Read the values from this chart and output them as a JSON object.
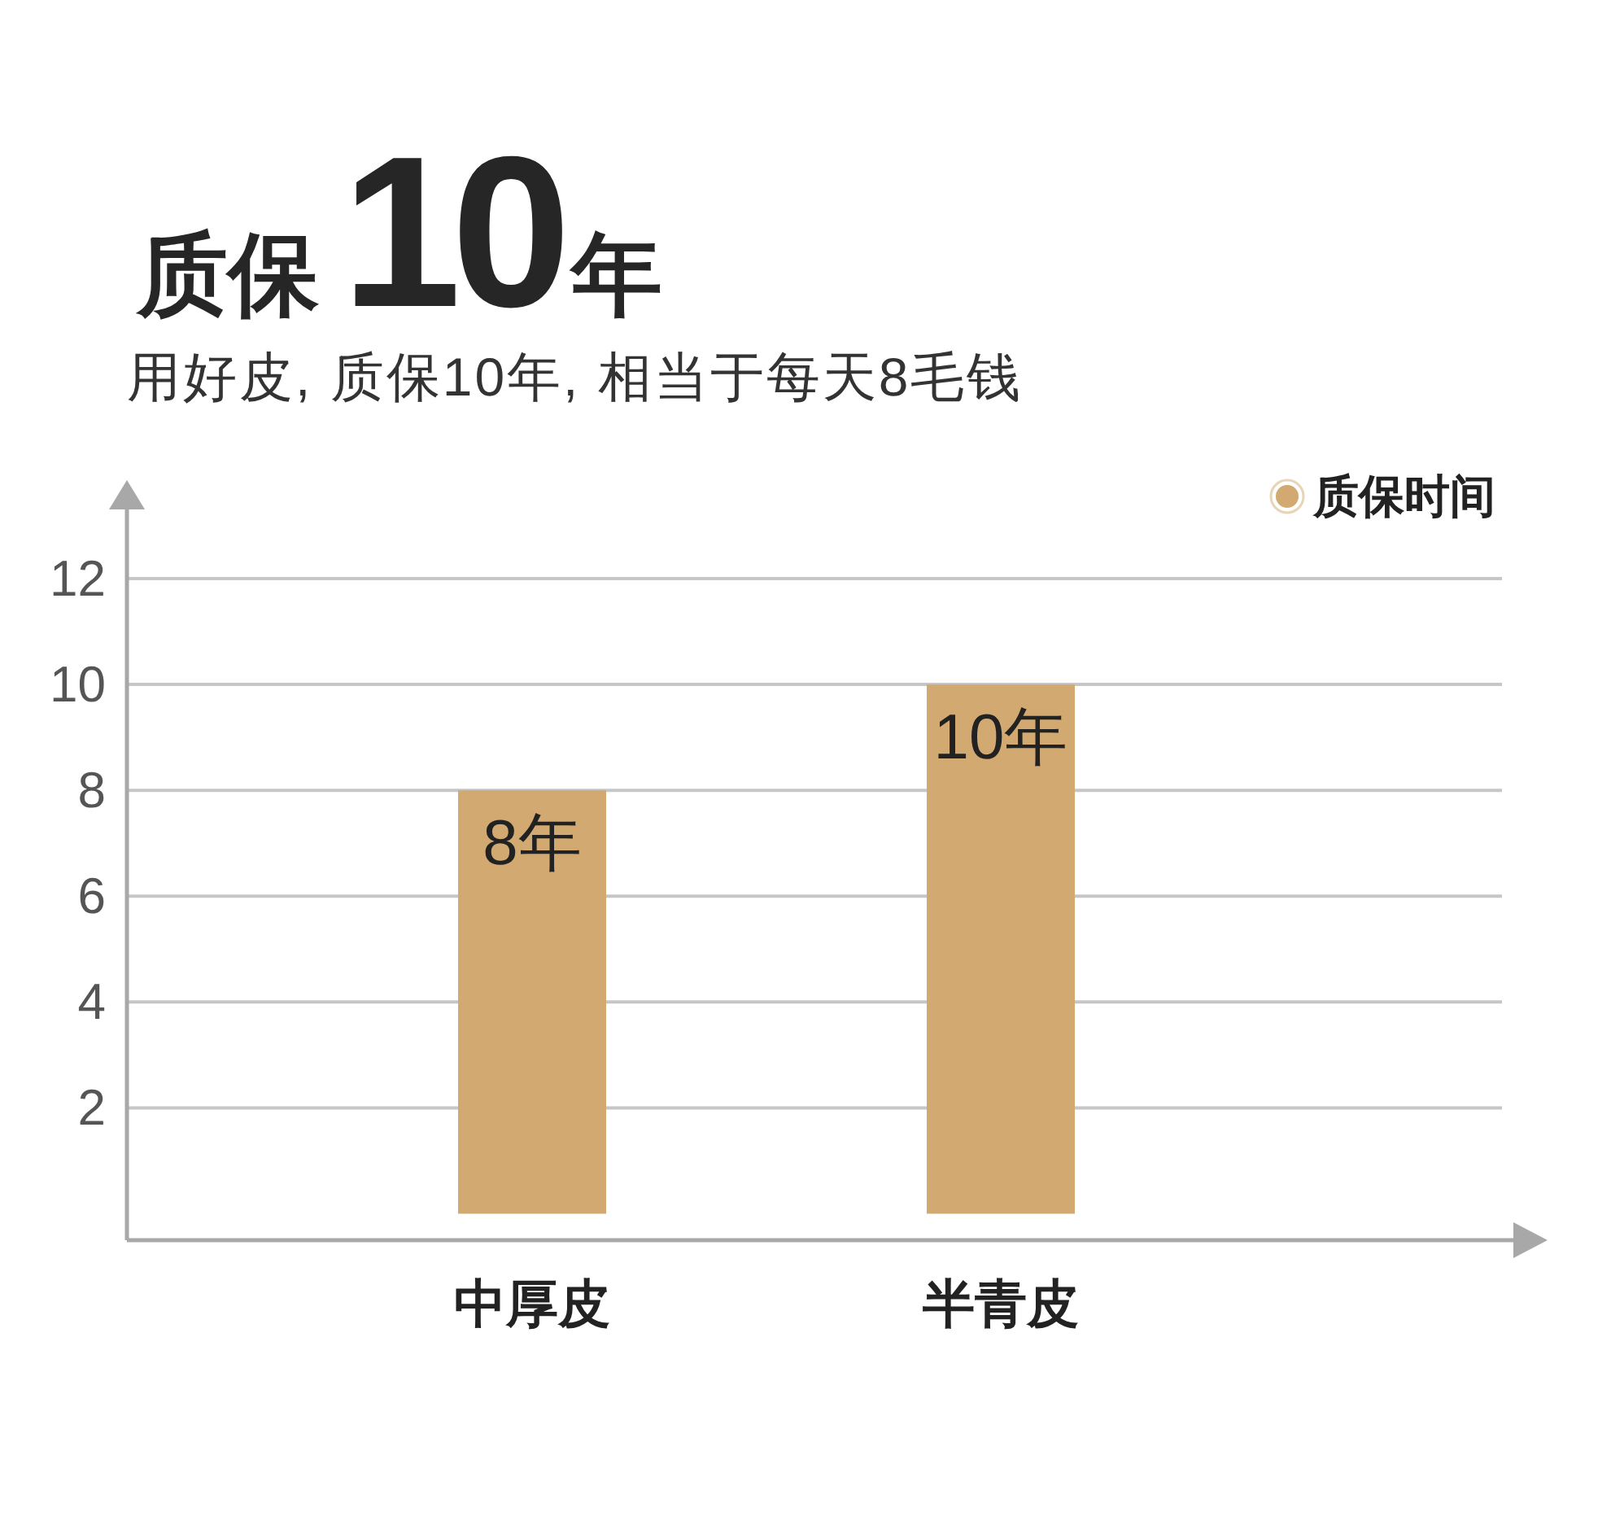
{
  "chart_data": {
    "type": "bar",
    "title": "质保10年",
    "subtitle": "用好皮, 质保10年, 相当于每天8毛钱",
    "categories": [
      "中厚皮",
      "半青皮"
    ],
    "series": [
      {
        "name": "质保时间",
        "color": "#d2a970",
        "values": [
          8,
          10
        ],
        "value_labels": [
          "8年",
          "10年"
        ]
      }
    ],
    "ylim": [
      -0.5,
      13.4
    ],
    "yticks": [
      2,
      4,
      6,
      8,
      10,
      12
    ],
    "grid": "y",
    "legend": "top right"
  }
}
